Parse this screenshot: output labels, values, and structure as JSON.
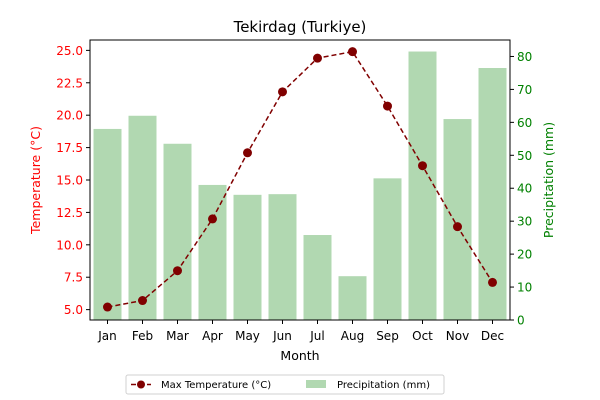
{
  "chart_data": {
    "type": "bar+line",
    "title": "Tekirdag (Turkiye)",
    "xlabel": "Month",
    "categories": [
      "Jan",
      "Feb",
      "Mar",
      "Apr",
      "May",
      "Jun",
      "Jul",
      "Aug",
      "Sep",
      "Oct",
      "Nov",
      "Dec"
    ],
    "left_axis": {
      "label": "Temperature (°C)",
      "color": "#ff0000",
      "ylim": [
        4.2,
        25.8
      ],
      "ticks": [
        "5.0",
        "7.5",
        "10.0",
        "12.5",
        "15.0",
        "17.5",
        "20.0",
        "22.5",
        "25.0"
      ]
    },
    "right_axis": {
      "label": "Precipitation (mm)",
      "color": "#008000",
      "ylim": [
        0,
        85
      ],
      "ticks": [
        "0",
        "10",
        "20",
        "30",
        "40",
        "50",
        "60",
        "70",
        "80"
      ]
    },
    "series": [
      {
        "name": "Max Temperature (°C)",
        "type": "line",
        "axis": "left",
        "color": "#800000",
        "style": "dashed",
        "marker": "circle",
        "values": [
          5.2,
          5.7,
          8.0,
          12.0,
          17.1,
          21.8,
          24.4,
          24.9,
          20.7,
          16.1,
          11.4,
          7.1
        ]
      },
      {
        "name": "Precipitation (mm)",
        "type": "bar",
        "axis": "right",
        "color": "#b1d8b1",
        "values": [
          58,
          62,
          53.5,
          41,
          38,
          38.2,
          25.8,
          13.3,
          43,
          81.5,
          61,
          76.5
        ]
      }
    ],
    "legend": "bottom-center",
    "grid": false
  }
}
